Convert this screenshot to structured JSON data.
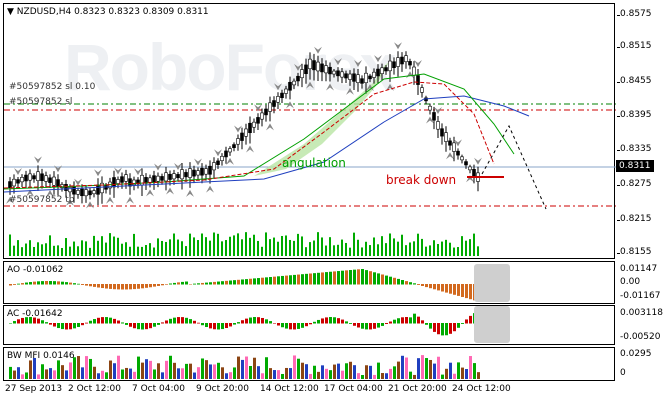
{
  "chart": {
    "header": "NZDUSD,H4  0.8323 0.8323 0.8309 0.8311",
    "current_price": "0.8311",
    "watermark": "RoboForex",
    "price_ticks": [
      "0.8575",
      "0.8515",
      "0.8455",
      "0.8395",
      "0.8335",
      "0.8275",
      "0.8215",
      "0.8155"
    ],
    "order_labels": [
      "#50597852 sl 0.10",
      "#50597852 sl",
      "#50597852 tp"
    ],
    "annotations": {
      "pattern": "angulation",
      "signal": "break down"
    },
    "colors": {
      "up_volume": "#00aa00",
      "ao_up": "#00aa00",
      "ao_down": "#d2691e",
      "ac_up": "#00aa00",
      "ac_down": "#cc0000",
      "level_green": "#008000",
      "level_red": "#cc0000",
      "ma_blue": "#1f3fbf",
      "ma_green": "#00a000",
      "ma_red": "#cc0000"
    }
  },
  "ao": {
    "label": "AO -0.01062",
    "ticks": [
      "0.01147",
      "0.00",
      "-0.01167"
    ]
  },
  "ac": {
    "label": "AC -0.01642",
    "ticks": [
      "0.003118",
      "-0.00520"
    ]
  },
  "mfi": {
    "label": "BW MFI 0.0146",
    "ticks": [
      "0.0295",
      "0"
    ]
  },
  "xaxis": [
    "27 Sep 2013",
    "2 Oct 12:00",
    "7 Oct 04:00",
    "9 Oct 20:00",
    "14 Oct 12:00",
    "17 Oct 04:00",
    "21 Oct 20:00",
    "24 Oct 12:00"
  ]
}
